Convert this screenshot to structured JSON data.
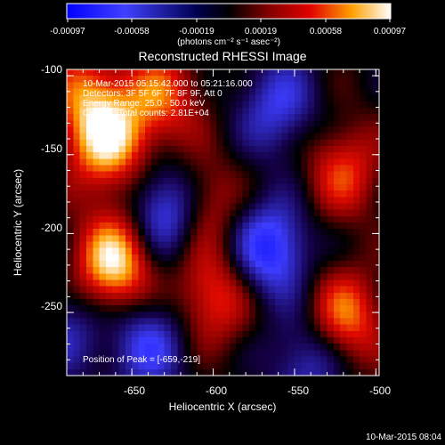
{
  "chart_data": {
    "type": "heatmap",
    "title": "Reconstructed RHESSI Image",
    "xlabel": "Heliocentric X (arcsec)",
    "ylabel": "Heliocentric Y (arcsec)",
    "xlim": [
      -690,
      -498
    ],
    "ylim": [
      -290,
      -96
    ],
    "x_ticks": [
      -650,
      -600,
      -550,
      -500
    ],
    "x_tick_labels": [
      "-650",
      "-600",
      "-550",
      "-500"
    ],
    "y_ticks": [
      -100,
      -150,
      -200,
      -250
    ],
    "y_tick_labels": [
      "-100",
      "-150",
      "-200",
      "-250"
    ],
    "colorbar": {
      "range": [
        -0.00097,
        0.00097
      ],
      "tick_labels": [
        "-0.00097",
        "-0.00058",
        "-0.00019",
        "0.00019",
        "0.00058",
        "0.00097"
      ],
      "unit_label": "(photons cm⁻² s⁻¹ asec⁻²)"
    },
    "annotations": [
      "10-Mar-2015 05:15:42.000 to 05:21:16.000",
      "Detectors: 3F 5F 6F 7F 8F 9F, Att 0",
      "Energy Range: 25.0 - 50.0 keV",
      "Clean     Total counts: 2.81E+04"
    ],
    "peak_label": "Position of Peak = [-659,-219]",
    "peak": [
      -659,
      -219
    ],
    "sources": [
      {
        "x": -661,
        "y": -219,
        "amp": 1.0
      },
      {
        "x": -665,
        "y": -143,
        "amp": 0.85
      },
      {
        "x": -632,
        "y": -114,
        "amp": 0.6
      },
      {
        "x": -610,
        "y": -182,
        "amp": 0.75
      },
      {
        "x": -600,
        "y": -240,
        "amp": 0.6
      },
      {
        "x": -520,
        "y": -255,
        "amp": 0.75
      },
      {
        "x": -520,
        "y": -160,
        "amp": 0.55
      },
      {
        "x": -678,
        "y": -112,
        "amp": 0.55
      },
      {
        "x": -625,
        "y": -185,
        "amp": -1.0
      },
      {
        "x": -565,
        "y": -210,
        "amp": -0.8
      },
      {
        "x": -560,
        "y": -120,
        "amp": -0.55
      },
      {
        "x": -640,
        "y": -270,
        "amp": -0.6
      },
      {
        "x": -540,
        "y": -280,
        "amp": -0.55
      },
      {
        "x": -690,
        "y": -260,
        "amp": -0.4
      }
    ],
    "colors": {
      "negative": "#1a1aff",
      "zero": "#000000",
      "positive_mid": "#e00000",
      "positive_high": "#ffa500",
      "positive_max": "#ffffff"
    }
  },
  "timestamp": "10-Mar-2015 08:04"
}
